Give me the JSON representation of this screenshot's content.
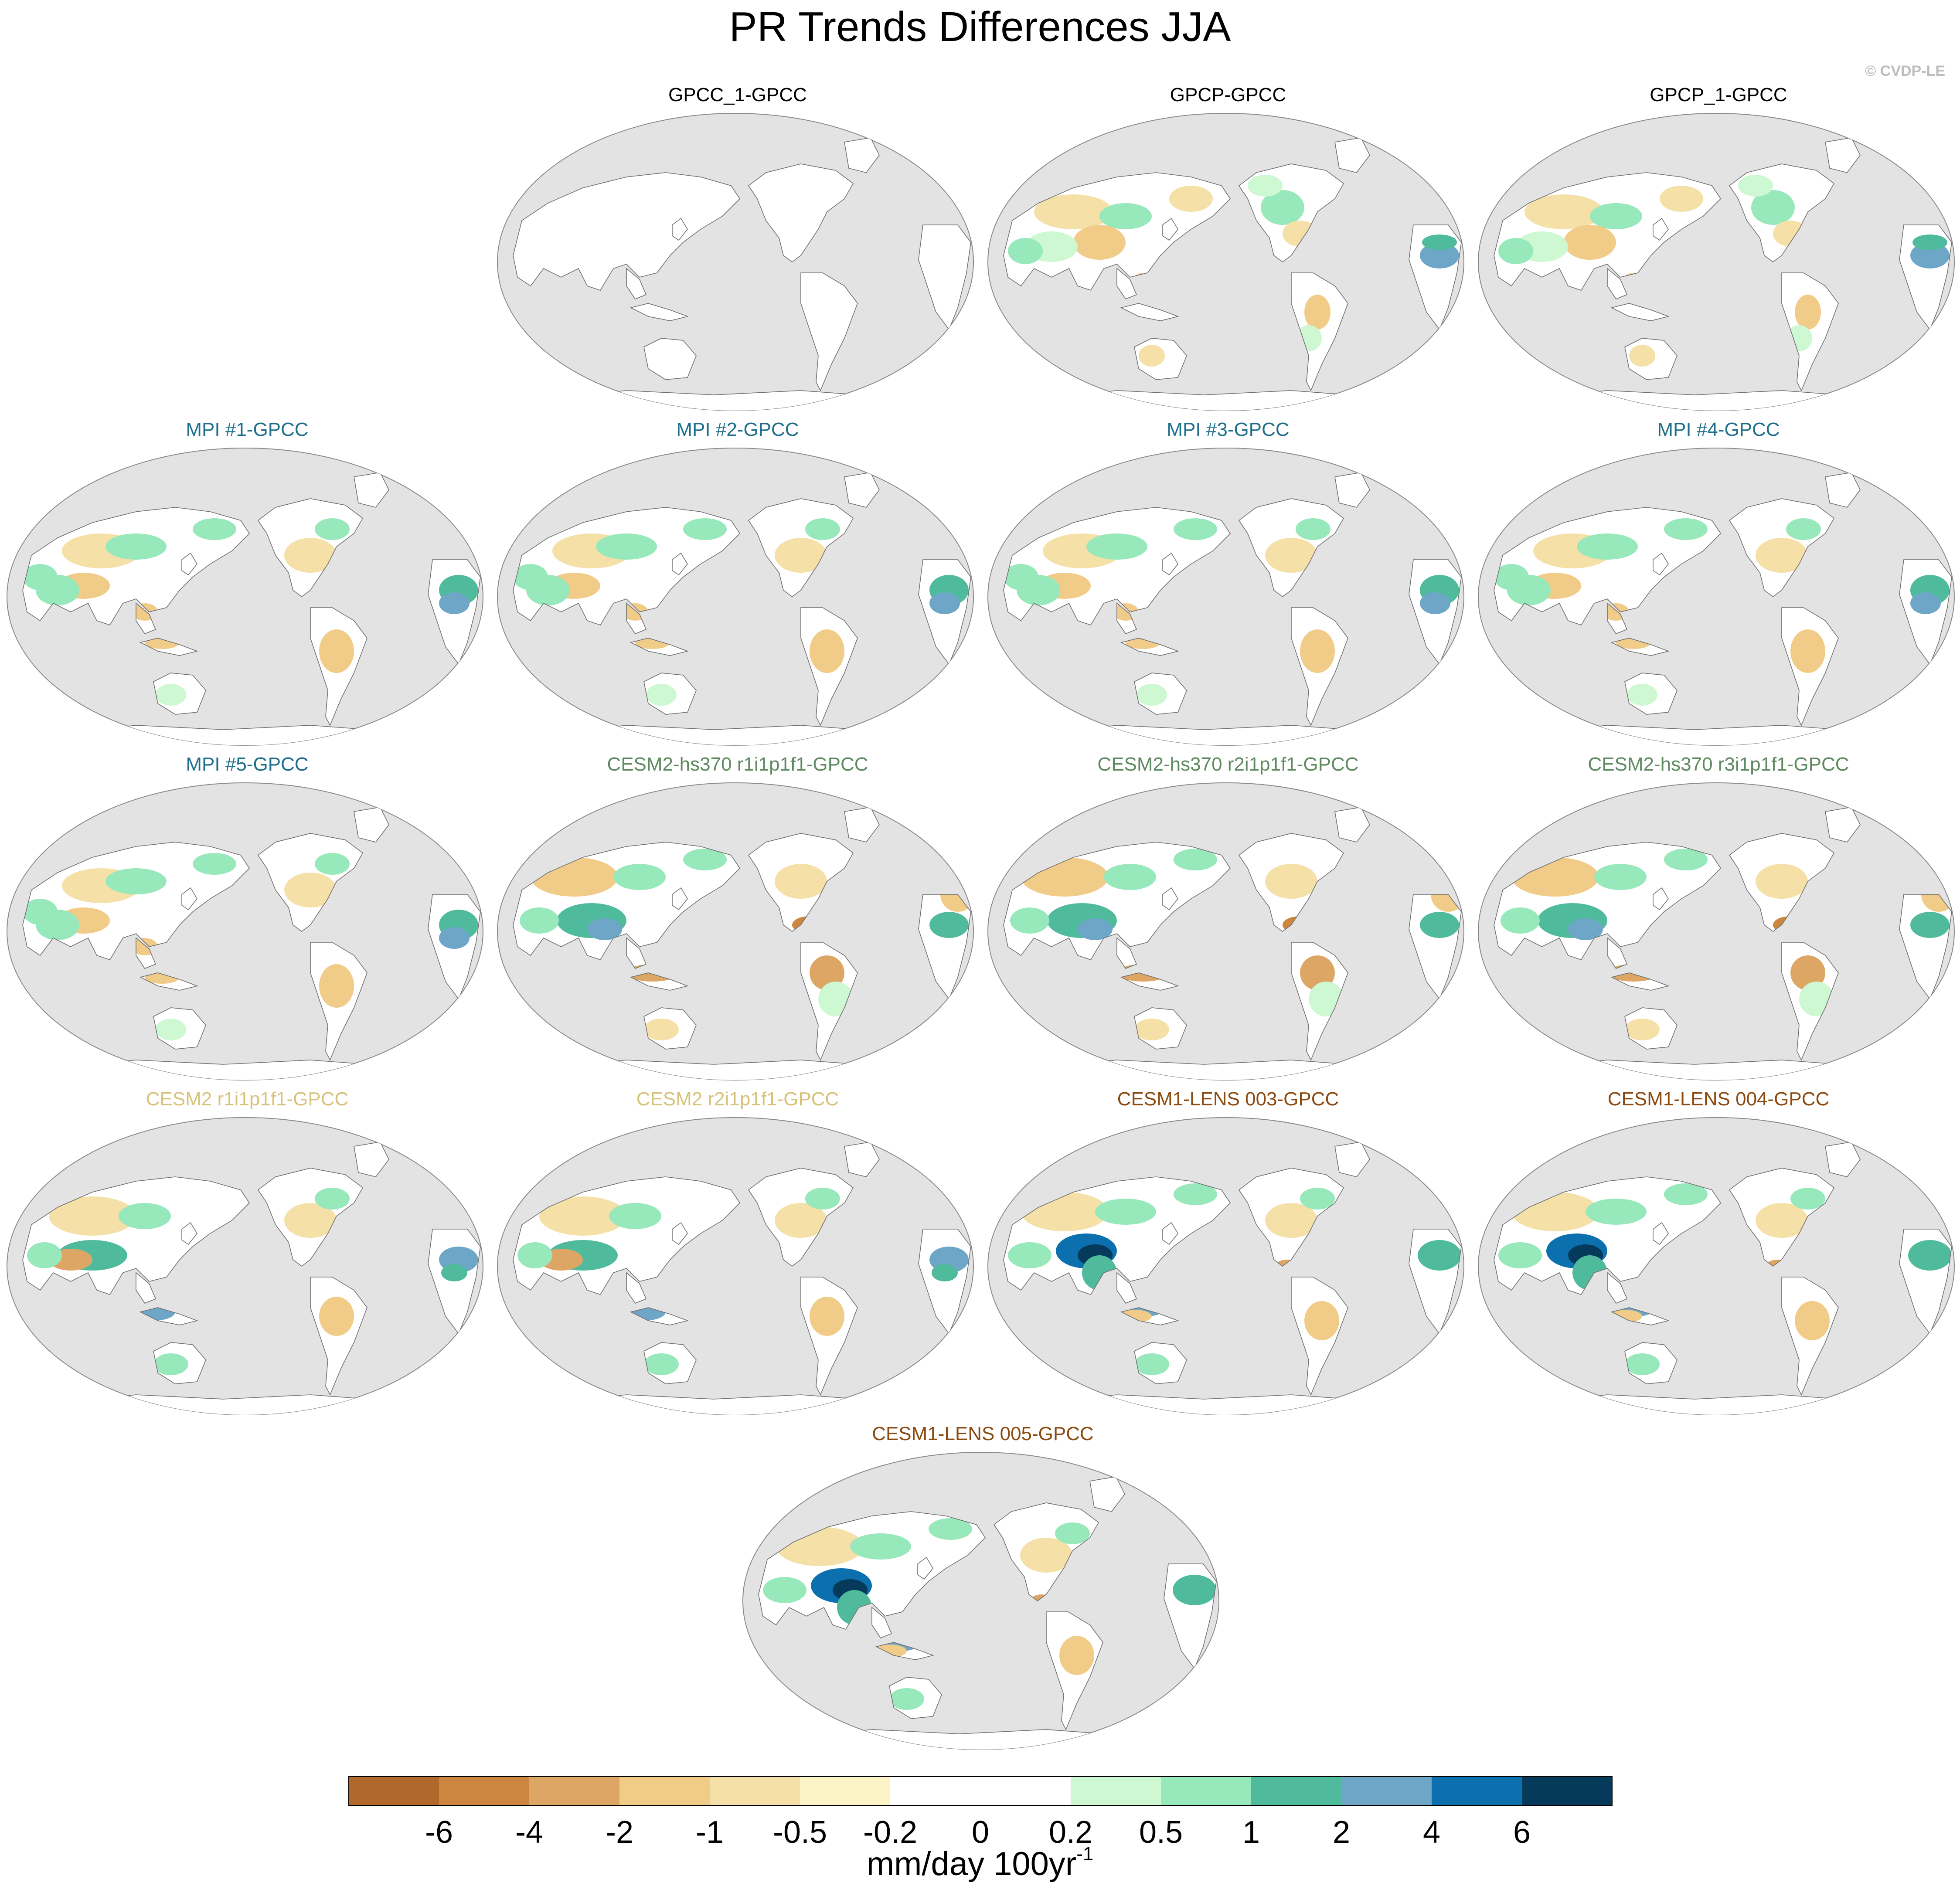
{
  "figure": {
    "title": "PR Trends Differences JJA",
    "credit": "© CVDP-LE"
  },
  "colors": {
    "ocean": "#e3e3e3",
    "coast": "#6f6f6f",
    "group_observations": "#000000",
    "group_mpi": "#1f6e8c",
    "group_cesm2_hs370": "#5f8a5f",
    "group_cesm2": "#d8c27a",
    "group_cesm1_lens": "#8a4a10"
  },
  "panels": [
    {
      "title": "GPCC_1-GPCC",
      "group": "group_observations",
      "pattern": "zero"
    },
    {
      "title": "GPCP-GPCC",
      "group": "group_observations",
      "pattern": "obs"
    },
    {
      "title": "GPCP_1-GPCC",
      "group": "group_observations",
      "pattern": "obs"
    },
    {
      "title": "MPI #1-GPCC",
      "group": "group_mpi",
      "pattern": "mpi"
    },
    {
      "title": "MPI #2-GPCC",
      "group": "group_mpi",
      "pattern": "mpi"
    },
    {
      "title": "MPI #3-GPCC",
      "group": "group_mpi",
      "pattern": "mpi"
    },
    {
      "title": "MPI #4-GPCC",
      "group": "group_mpi",
      "pattern": "mpi"
    },
    {
      "title": "MPI #5-GPCC",
      "group": "group_mpi",
      "pattern": "mpi"
    },
    {
      "title": "CESM2-hs370 r1i1p1f1-GPCC",
      "group": "group_cesm2_hs370",
      "pattern": "hs370"
    },
    {
      "title": "CESM2-hs370 r2i1p1f1-GPCC",
      "group": "group_cesm2_hs370",
      "pattern": "hs370"
    },
    {
      "title": "CESM2-hs370 r3i1p1f1-GPCC",
      "group": "group_cesm2_hs370",
      "pattern": "hs370"
    },
    {
      "title": "CESM2 r1i1p1f1-GPCC",
      "group": "group_cesm2",
      "pattern": "cesm2"
    },
    {
      "title": "CESM2 r2i1p1f1-GPCC",
      "group": "group_cesm2",
      "pattern": "cesm2"
    },
    {
      "title": "CESM1-LENS 003-GPCC",
      "group": "group_cesm1_lens",
      "pattern": "lens"
    },
    {
      "title": "CESM1-LENS 004-GPCC",
      "group": "group_cesm1_lens",
      "pattern": "lens"
    },
    {
      "title": "CESM1-LENS 005-GPCC",
      "group": "group_cesm1_lens",
      "pattern": "lens"
    }
  ],
  "colorbar": {
    "units_main": "mm/day 100yr",
    "units_exponent": "-1",
    "tick_labels": [
      "-6",
      "-4",
      "-2",
      "-1",
      "-0.5",
      "-0.2",
      "0",
      "0.2",
      "0.5",
      "1",
      "2",
      "4",
      "6"
    ],
    "bin_colors": [
      "#b0692a",
      "#cd8640",
      "#dea664",
      "#f1cb88",
      "#f5e0a8",
      "#fcf3c6",
      "#ffffff",
      "#ffffff",
      "#cdf8d2",
      "#97e8ba",
      "#4fbb9c",
      "#6ea6c8",
      "#0c6fae",
      "#053a5a"
    ]
  }
}
